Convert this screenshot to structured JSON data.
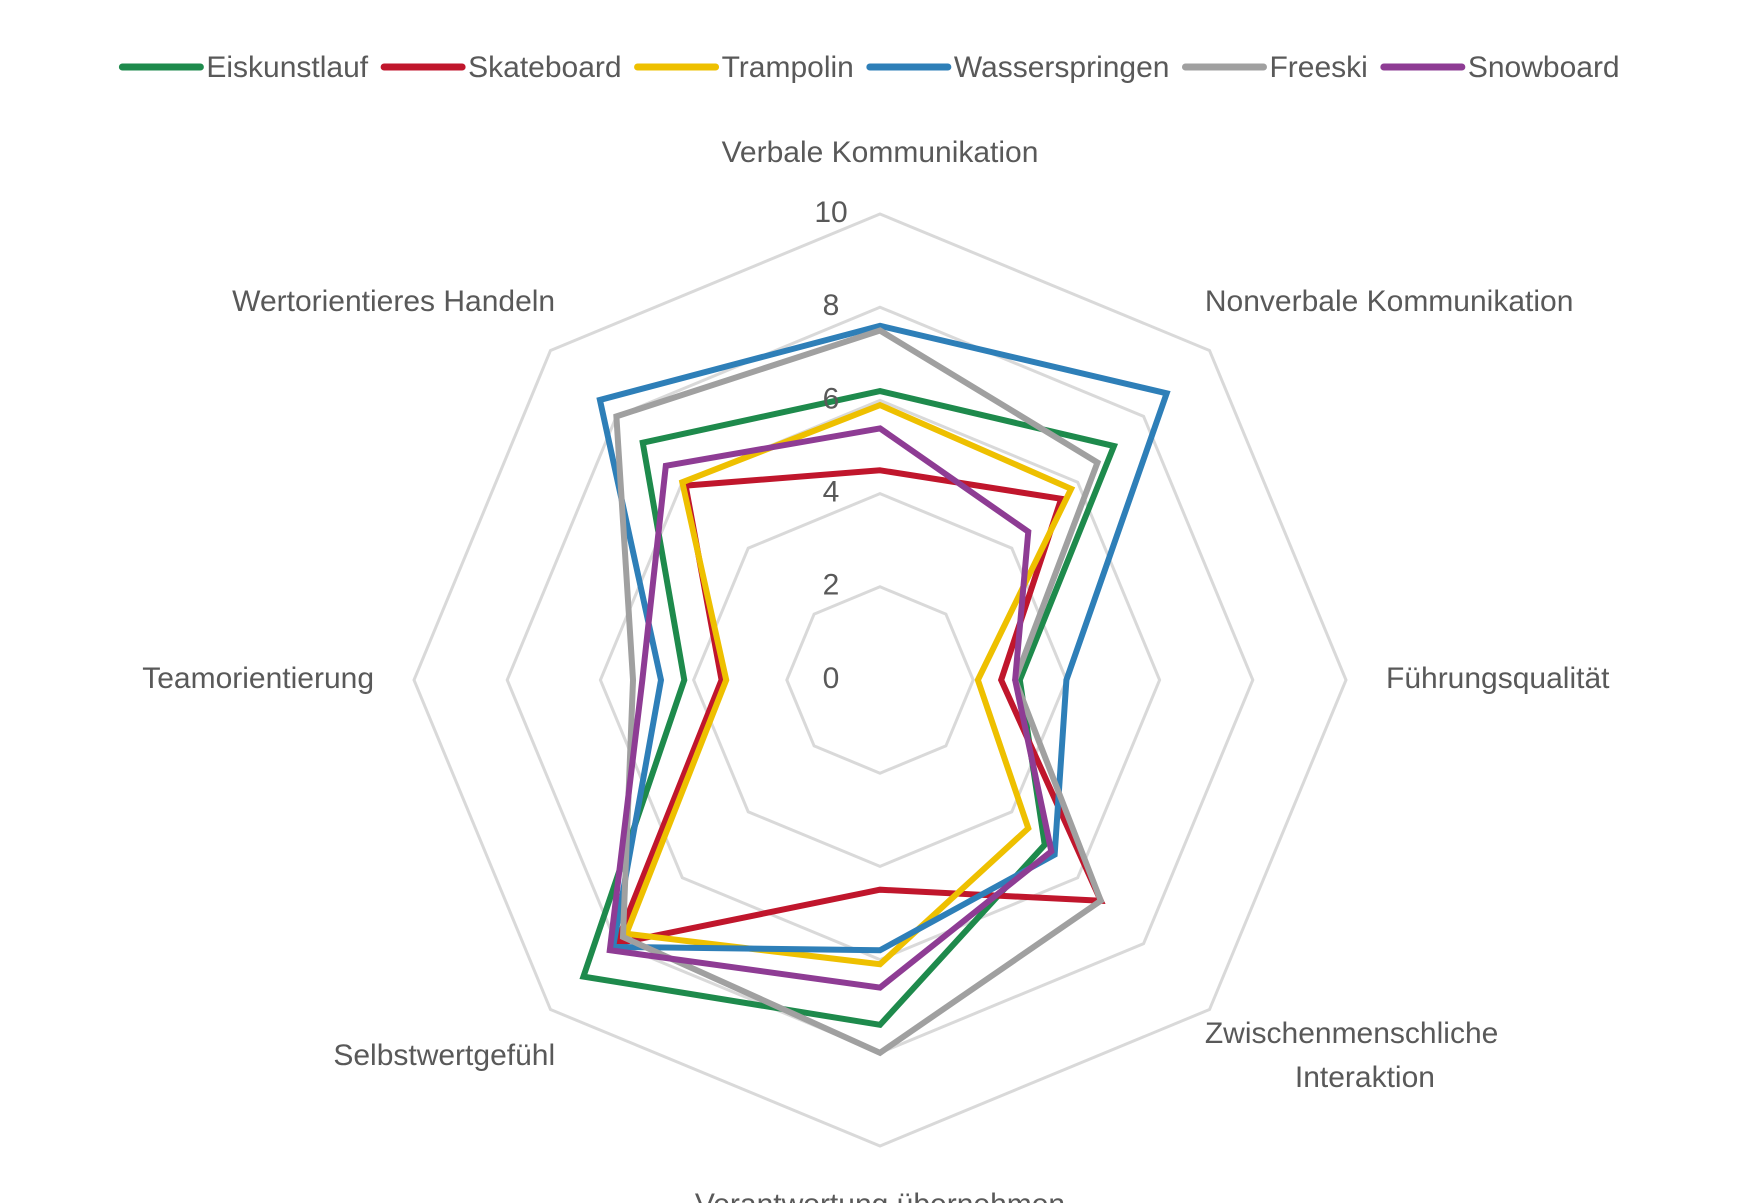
{
  "chart_data": {
    "type": "radar",
    "categories": [
      "Verbale Kommunikation",
      "Nonverbale Kommunikation",
      "Führungsqualität",
      "Zwischenmenschliche\nInteraktion",
      "Verantwortung übernehmen",
      "Selbstwertgefühl",
      "Teamorientierung",
      "Wertorientieres Handeln"
    ],
    "series": [
      {
        "name": "Eiskunstlauf",
        "color": "#1e8a4c",
        "values": [
          6.2,
          7.1,
          3.0,
          5.0,
          7.4,
          9.0,
          4.2,
          7.2
        ]
      },
      {
        "name": "Skateboard",
        "color": "#c0162c",
        "values": [
          4.5,
          5.5,
          2.6,
          6.7,
          4.5,
          8.0,
          3.4,
          5.9
        ]
      },
      {
        "name": "Trampolin",
        "color": "#eec000",
        "values": [
          5.9,
          5.8,
          2.1,
          4.5,
          6.1,
          7.7,
          3.3,
          6.0
        ]
      },
      {
        "name": "Wasserspringen",
        "color": "#2e7fb8",
        "values": [
          7.6,
          8.7,
          4.0,
          5.3,
          5.8,
          8.1,
          4.7,
          8.5
        ]
      },
      {
        "name": "Freeski",
        "color": "#a0a0a0",
        "values": [
          7.5,
          6.6,
          2.9,
          6.7,
          8.0,
          7.8,
          5.3,
          8.0
        ]
      },
      {
        "name": "Snowboard",
        "color": "#8e3c94",
        "values": [
          5.4,
          4.5,
          2.9,
          5.2,
          6.6,
          8.2,
          5.1,
          6.5
        ]
      }
    ],
    "ylim": [
      0,
      10
    ],
    "yticks": [
      0,
      2,
      4,
      6,
      8,
      10
    ],
    "grid": true,
    "legend": "top"
  }
}
